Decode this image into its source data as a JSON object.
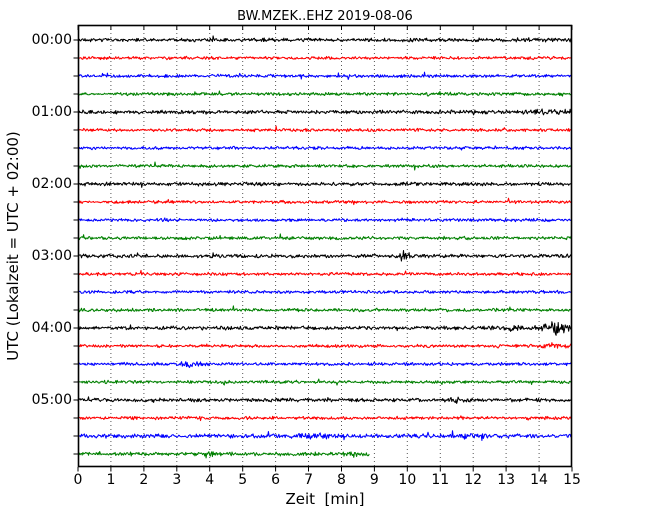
{
  "title": "BW.MZEK..EHZ 2019-08-06",
  "xlabel": "Zeit  [min]",
  "ylabel": "UTC (Lokalzeit = UTC + 02:00)",
  "chart_data": {
    "type": "line",
    "variant": "helicorder-dayplot",
    "station": "BW.MZEK..EHZ",
    "date": "2019-08-06",
    "xlim": [
      0,
      15
    ],
    "x_unit": "min",
    "x_tick_labels": [
      "0",
      "1",
      "2",
      "3",
      "4",
      "5",
      "6",
      "7",
      "8",
      "9",
      "10",
      "11",
      "12",
      "13",
      "14",
      "15"
    ],
    "y_tick_labels": [
      "00:00",
      "01:00",
      "02:00",
      "03:00",
      "04:00",
      "05:00"
    ],
    "trace_interval_min": 15,
    "grid": "vertical-dotted-per-minute",
    "legend": "none",
    "colors": {
      "black": "#000000",
      "red": "#ff0000",
      "blue": "#0000ff",
      "green": "#008000"
    },
    "traces": [
      {
        "utc": "00:00",
        "color": "black",
        "end_min": 15,
        "amp": 1.3,
        "events": []
      },
      {
        "utc": "00:15",
        "color": "red",
        "end_min": 15,
        "amp": 1.1,
        "events": []
      },
      {
        "utc": "00:30",
        "color": "blue",
        "end_min": 15,
        "amp": 1.1,
        "events": []
      },
      {
        "utc": "00:45",
        "color": "green",
        "end_min": 15,
        "amp": 1.15,
        "events": []
      },
      {
        "utc": "01:00",
        "color": "black",
        "end_min": 15,
        "amp": 1.3,
        "events": [
          {
            "t": 14.3,
            "w": 0.8,
            "a": 0.9
          }
        ]
      },
      {
        "utc": "01:15",
        "color": "red",
        "end_min": 15,
        "amp": 1.1,
        "events": []
      },
      {
        "utc": "01:30",
        "color": "blue",
        "end_min": 15,
        "amp": 1.1,
        "events": []
      },
      {
        "utc": "01:45",
        "color": "green",
        "end_min": 15,
        "amp": 1.15,
        "events": []
      },
      {
        "utc": "02:00",
        "color": "black",
        "end_min": 15,
        "amp": 1.3,
        "events": []
      },
      {
        "utc": "02:15",
        "color": "red",
        "end_min": 15,
        "amp": 1.1,
        "events": []
      },
      {
        "utc": "02:30",
        "color": "blue",
        "end_min": 15,
        "amp": 1.1,
        "events": []
      },
      {
        "utc": "02:45",
        "color": "green",
        "end_min": 15,
        "amp": 1.15,
        "events": []
      },
      {
        "utc": "03:00",
        "color": "black",
        "end_min": 15,
        "amp": 1.3,
        "events": [
          {
            "t": 9.87,
            "w": 0.12,
            "a": 2.6
          }
        ]
      },
      {
        "utc": "03:15",
        "color": "red",
        "end_min": 15,
        "amp": 1.1,
        "events": []
      },
      {
        "utc": "03:30",
        "color": "blue",
        "end_min": 15,
        "amp": 1.1,
        "events": []
      },
      {
        "utc": "03:45",
        "color": "green",
        "end_min": 15,
        "amp": 1.15,
        "events": []
      },
      {
        "utc": "04:00",
        "color": "black",
        "end_min": 15,
        "amp": 1.3,
        "events": [
          {
            "t": 13.6,
            "w": 0.9,
            "a": 1.2
          },
          {
            "t": 14.5,
            "w": 0.32,
            "a": 4.2
          }
        ]
      },
      {
        "utc": "04:15",
        "color": "red",
        "end_min": 15,
        "amp": 1.1,
        "events": [
          {
            "t": 14.5,
            "w": 0.5,
            "a": 0.8
          }
        ]
      },
      {
        "utc": "04:30",
        "color": "blue",
        "end_min": 15,
        "amp": 1.1,
        "events": [
          {
            "t": 3.4,
            "w": 0.3,
            "a": 1.8
          }
        ]
      },
      {
        "utc": "04:45",
        "color": "green",
        "end_min": 15,
        "amp": 1.15,
        "events": []
      },
      {
        "utc": "05:00",
        "color": "black",
        "end_min": 15,
        "amp": 1.3,
        "events": [
          {
            "t": 11.55,
            "w": 0.25,
            "a": 1.4
          }
        ]
      },
      {
        "utc": "05:15",
        "color": "red",
        "end_min": 15,
        "amp": 1.1,
        "events": []
      },
      {
        "utc": "05:30",
        "color": "blue",
        "end_min": 15,
        "amp": 1.5,
        "events": [
          {
            "t": 7.3,
            "w": 0.5,
            "a": 1.2
          },
          {
            "t": 11.75,
            "w": 0.3,
            "a": 1.4
          }
        ]
      },
      {
        "utc": "05:45",
        "color": "green",
        "end_min": 8.85,
        "amp": 1.3,
        "events": [
          {
            "t": 3.95,
            "w": 0.2,
            "a": 2.2
          },
          {
            "t": 8.3,
            "w": 0.25,
            "a": 1.2
          }
        ]
      }
    ]
  }
}
